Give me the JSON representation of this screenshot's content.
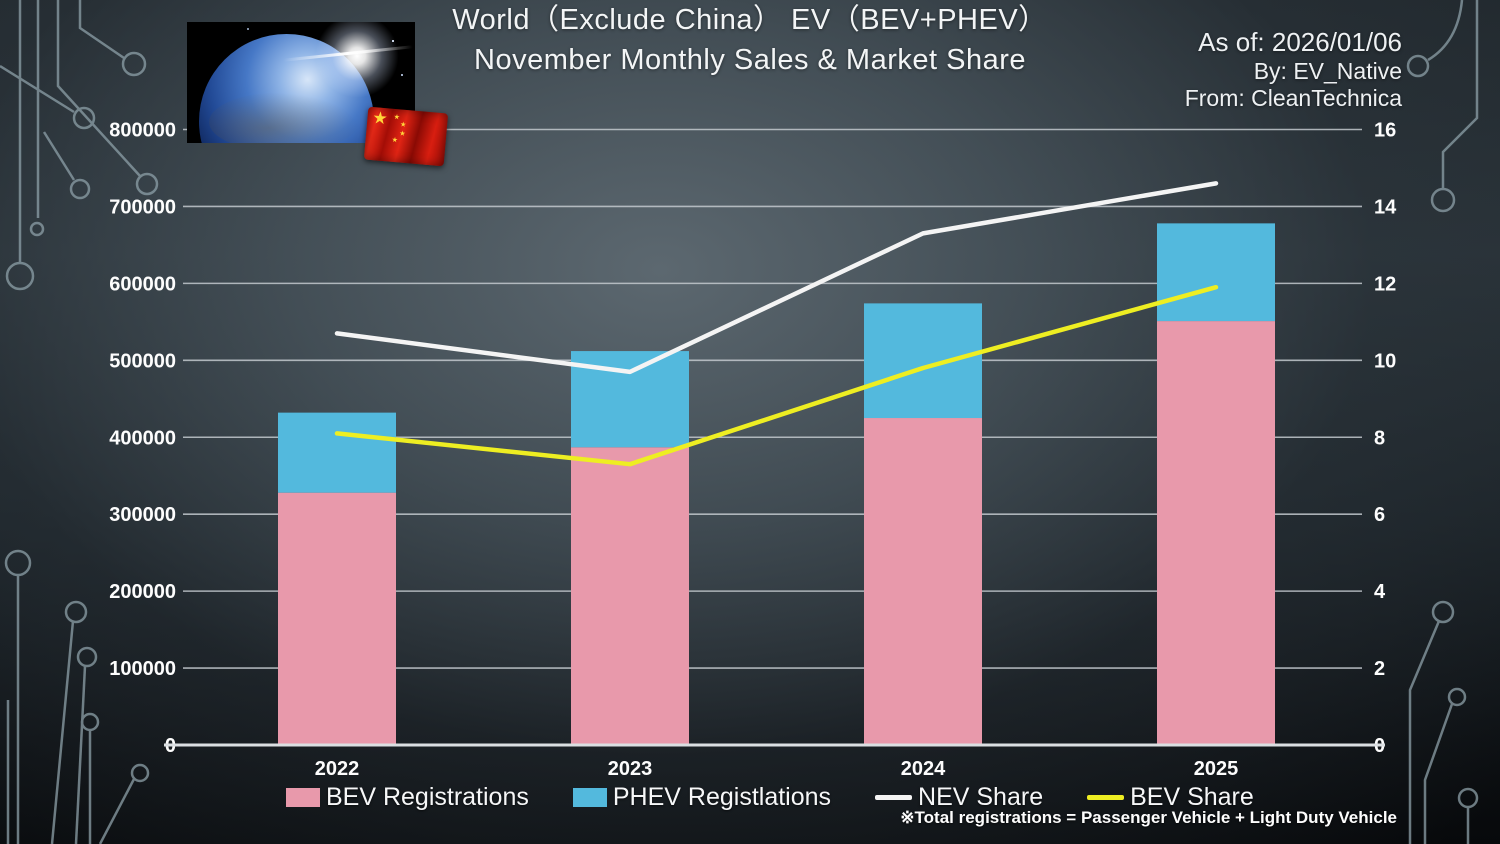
{
  "title": {
    "line1": "World（Exclude China） EV（BEV+PHEV）",
    "line2": "November Monthly Sales & Market Share"
  },
  "meta": {
    "as_of": "As of: 2026/01/06",
    "by": "By: EV_Native",
    "from": "From: CleanTechnica"
  },
  "footnote": "※Total registrations = Passenger Vehicle + Light Duty Vehicle",
  "colors": {
    "bev": "#e899ab",
    "phev": "#53b9dd",
    "nev_line": "#f4f4f4",
    "bev_line": "#eeee22",
    "grid": "#c3c9ce",
    "zero_line": "#dbdfe2",
    "axis_text": "#ffffff"
  },
  "legend": [
    {
      "label": "BEV Registrations",
      "swatch": "bar",
      "color_key": "bev"
    },
    {
      "label": "PHEV Registlations",
      "swatch": "bar",
      "color_key": "phev"
    },
    {
      "label": "NEV Share",
      "swatch": "line",
      "color_key": "nev_line"
    },
    {
      "label": "BEV Share",
      "swatch": "line",
      "color_key": "bev_line"
    }
  ],
  "icons": {
    "earth": "earth-from-space-image",
    "flag": "china-flag-icon"
  },
  "chart_data": {
    "type": "combo-stacked-bar-line",
    "categories": [
      "2022",
      "2023",
      "2024",
      "2025"
    ],
    "bar_series": [
      {
        "name": "BEV Registrations",
        "axis": "left",
        "color_key": "bev",
        "values": [
          328000,
          387000,
          425000,
          551000
        ]
      },
      {
        "name": "PHEV Registlations",
        "axis": "left",
        "color_key": "phev",
        "values": [
          104000,
          125000,
          149000,
          127000
        ]
      }
    ],
    "bar_totals": [
      432000,
      512000,
      574000,
      678000
    ],
    "line_series": [
      {
        "name": "NEV Share",
        "axis": "right",
        "color_key": "nev_line",
        "values": [
          10.7,
          9.7,
          13.3,
          14.6
        ]
      },
      {
        "name": "BEV Share",
        "axis": "right",
        "color_key": "bev_line",
        "values": [
          8.1,
          7.3,
          9.8,
          11.9
        ]
      }
    ],
    "left_axis": {
      "min": 0,
      "max": 800000,
      "step": 100000,
      "ticks": [
        "0",
        "100000",
        "200000",
        "300000",
        "400000",
        "500000",
        "600000",
        "700000",
        "800000"
      ]
    },
    "right_axis": {
      "min": 0,
      "max": 16,
      "step": 2,
      "ticks": [
        "0",
        "2",
        "4",
        "6",
        "8",
        "10",
        "12",
        "14",
        "16"
      ]
    },
    "grid": true,
    "legend_position": "bottom"
  }
}
